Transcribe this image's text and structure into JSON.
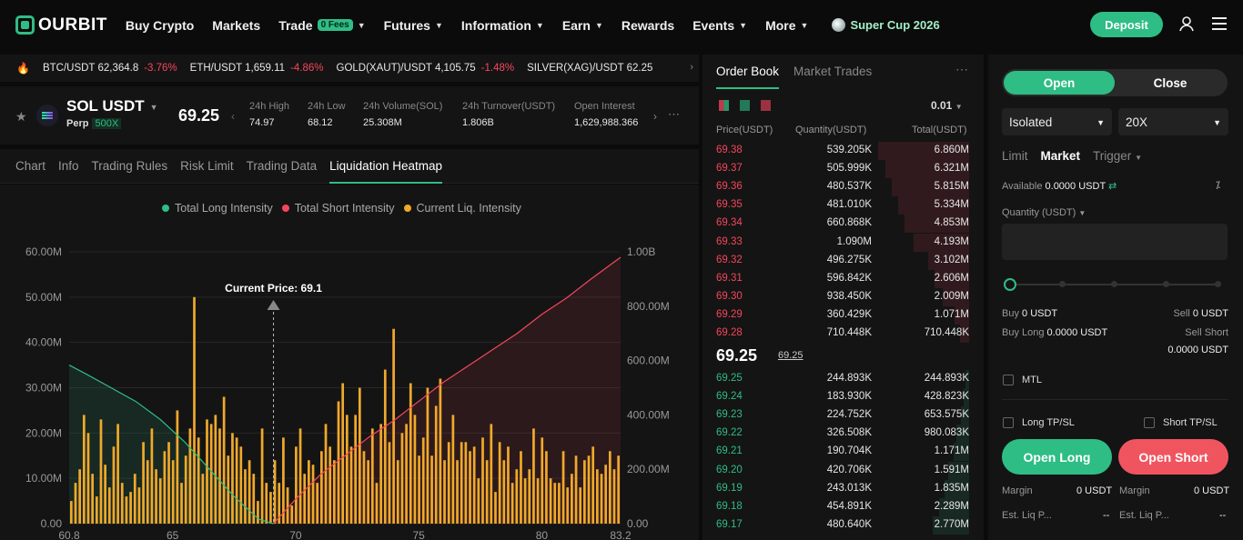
{
  "nav": {
    "logo": "OURBIT",
    "items": [
      {
        "label": "Buy Crypto",
        "chevron": false
      },
      {
        "label": "Markets",
        "chevron": false
      },
      {
        "label": "Trade",
        "chevron": true,
        "badge": "0 Fees"
      },
      {
        "label": "Futures",
        "chevron": true
      },
      {
        "label": "Information",
        "chevron": true
      },
      {
        "label": "Earn",
        "chevron": true
      },
      {
        "label": "Rewards",
        "chevron": false
      },
      {
        "label": "Events",
        "chevron": true
      },
      {
        "label": "More",
        "chevron": true
      }
    ],
    "promo": "Super Cup 2026",
    "deposit": "Deposit"
  },
  "ticker": [
    {
      "pair": "BTC/USDT",
      "price": "62,364.8",
      "change": "-3.76%"
    },
    {
      "pair": "ETH/USDT",
      "price": "1,659.11",
      "change": "-4.86%"
    },
    {
      "pair": "GOLD(XAUT)/USDT",
      "price": "4,105.75",
      "change": "-1.48%"
    },
    {
      "pair": "SILVER(XAG)/USDT",
      "price": "62.25",
      "change": ""
    }
  ],
  "symbol": {
    "name": "SOL USDT",
    "type": "Perp",
    "leverage": "500X",
    "last_price": "69.25",
    "stats": [
      {
        "label": "24h High",
        "value": "74.97"
      },
      {
        "label": "24h Low",
        "value": "68.12"
      },
      {
        "label": "24h Volume(SOL)",
        "value": "25.308M"
      },
      {
        "label": "24h Turnover(USDT)",
        "value": "1.806B"
      },
      {
        "label": "Open Interest",
        "value": "1,629,988.366"
      }
    ]
  },
  "tabs": [
    "Chart",
    "Info",
    "Trading Rules",
    "Risk Limit",
    "Trading Data",
    "Liquidation Heatmap"
  ],
  "active_tab": "Liquidation Heatmap",
  "chart_data": {
    "type": "bar",
    "title": "",
    "legend": [
      "Total Long Intensity",
      "Total Short Intensity",
      "Current Liq. Intensity"
    ],
    "legend_colors": [
      "#2ebd85",
      "#f6465d",
      "#f0a92b"
    ],
    "annotation": "Current Price: 69.1",
    "current_price": 69.1,
    "xlim": [
      60.8,
      83.2
    ],
    "x_ticks": [
      "60.8",
      "65",
      "70",
      "75",
      "80",
      "83.2"
    ],
    "y_left_ticks": [
      "0.00",
      "10.00M",
      "20.00M",
      "30.00M",
      "40.00M",
      "50.00M",
      "60.00M"
    ],
    "y_right_ticks": [
      "0.00",
      "200.00M",
      "400.00M",
      "600.00M",
      "800.00M",
      "1.00B"
    ],
    "ylim_left": [
      0,
      60
    ],
    "ylim_right": [
      0,
      1000
    ],
    "bar_unit": "M",
    "bars": [
      5,
      9,
      12,
      24,
      20,
      11,
      6,
      23,
      13,
      8,
      17,
      22,
      9,
      6,
      7,
      11,
      8,
      18,
      14,
      21,
      12,
      10,
      16,
      18,
      14,
      25,
      9,
      15,
      21,
      50,
      19,
      11,
      23,
      22,
      24,
      21,
      28,
      15,
      20,
      19,
      17,
      12,
      14,
      11,
      5,
      21,
      9,
      7,
      14,
      9,
      19,
      8,
      4,
      17,
      21,
      11,
      14,
      13,
      9,
      16,
      22,
      17,
      14,
      27,
      31,
      24,
      17,
      24,
      30,
      16,
      14,
      21,
      9,
      22,
      34,
      18,
      43,
      14,
      20,
      22,
      31,
      24,
      15,
      19,
      30,
      15,
      26,
      32,
      14,
      18,
      24,
      14,
      18,
      18,
      16,
      17,
      10,
      19,
      14,
      22,
      7,
      18,
      14,
      17,
      9,
      12,
      16,
      10,
      12,
      21,
      10,
      19,
      16,
      10,
      9,
      9,
      16,
      8,
      11,
      15,
      8,
      14,
      15,
      17,
      12,
      11,
      13,
      16,
      12,
      15
    ],
    "long_intensity": {
      "x": [
        60.8,
        61.5,
        62.5,
        63.5,
        64.5,
        65.5,
        66.5,
        67.5,
        68.5,
        69.1
      ],
      "values_M": [
        35,
        33,
        30,
        27,
        23,
        18,
        12,
        6,
        1,
        0
      ]
    },
    "short_intensity": {
      "x": [
        69.1,
        70,
        71,
        72,
        73,
        74,
        75,
        76,
        77,
        78,
        79,
        80,
        81,
        82,
        83.2
      ],
      "values_M": [
        0,
        90,
        180,
        250,
        320,
        380,
        450,
        520,
        580,
        640,
        700,
        770,
        830,
        900,
        980
      ]
    }
  },
  "orderbook": {
    "tabs": [
      "Order Book",
      "Market Trades"
    ],
    "precision": "0.01",
    "headers": [
      "Price(USDT)",
      "Quantity(USDT)",
      "Total(USDT)"
    ],
    "asks": [
      {
        "price": "69.38",
        "qty": "539.205K",
        "total": "6.860M",
        "depth": 1.0
      },
      {
        "price": "69.37",
        "qty": "505.999K",
        "total": "6.321M",
        "depth": 0.92
      },
      {
        "price": "69.36",
        "qty": "480.537K",
        "total": "5.815M",
        "depth": 0.85
      },
      {
        "price": "69.35",
        "qty": "481.010K",
        "total": "5.334M",
        "depth": 0.78
      },
      {
        "price": "69.34",
        "qty": "660.868K",
        "total": "4.853M",
        "depth": 0.71
      },
      {
        "price": "69.33",
        "qty": "1.090M",
        "total": "4.193M",
        "depth": 0.61
      },
      {
        "price": "69.32",
        "qty": "496.275K",
        "total": "3.102M",
        "depth": 0.45
      },
      {
        "price": "69.31",
        "qty": "596.842K",
        "total": "2.606M",
        "depth": 0.38
      },
      {
        "price": "69.30",
        "qty": "938.450K",
        "total": "2.009M",
        "depth": 0.29
      },
      {
        "price": "69.29",
        "qty": "360.429K",
        "total": "1.071M",
        "depth": 0.16
      },
      {
        "price": "69.28",
        "qty": "710.448K",
        "total": "710.448K",
        "depth": 0.1
      }
    ],
    "mid_price": "69.25",
    "mark_price": "69.25",
    "bids": [
      {
        "price": "69.25",
        "qty": "244.893K",
        "total": "244.893K",
        "depth": 0.04
      },
      {
        "price": "69.24",
        "qty": "183.930K",
        "total": "428.823K",
        "depth": 0.06
      },
      {
        "price": "69.23",
        "qty": "224.752K",
        "total": "653.575K",
        "depth": 0.09
      },
      {
        "price": "69.22",
        "qty": "326.508K",
        "total": "980.083K",
        "depth": 0.14
      },
      {
        "price": "69.21",
        "qty": "190.704K",
        "total": "1.171M",
        "depth": 0.17
      },
      {
        "price": "69.20",
        "qty": "420.706K",
        "total": "1.591M",
        "depth": 0.23
      },
      {
        "price": "69.19",
        "qty": "243.013K",
        "total": "1.835M",
        "depth": 0.27
      },
      {
        "price": "69.18",
        "qty": "454.891K",
        "total": "2.289M",
        "depth": 0.33
      },
      {
        "price": "69.17",
        "qty": "480.640K",
        "total": "2.770M",
        "depth": 0.4
      }
    ]
  },
  "panel": {
    "open": "Open",
    "close": "Close",
    "margin_mode": "Isolated",
    "leverage": "20X",
    "order_types": [
      "Limit",
      "Market",
      "Trigger"
    ],
    "active_type": "Market",
    "available_label": "Available",
    "available_value": "0.0000 USDT",
    "quantity_label": "Quantity (USDT)",
    "buy_label": "Buy",
    "buy_value": "0 USDT",
    "sell_label": "Sell",
    "sell_value": "0 USDT",
    "buy_long_label": "Buy Long",
    "buy_long_value": "0.0000 USDT",
    "sell_short_label": "Sell Short",
    "sell_short_value": "0.0000 USDT",
    "mtl": "MTL",
    "long_tpsl": "Long TP/SL",
    "short_tpsl": "Short TP/SL",
    "open_long": "Open Long",
    "open_short": "Open Short",
    "margin_label": "Margin",
    "margin_long": "0 USDT",
    "margin_short": "0 USDT",
    "est_liq_label": "Est. Liq P...",
    "est_liq_long": "--",
    "est_liq_short": "--"
  },
  "colors": {
    "accent": "#2ebd85",
    "negative": "#f6465d",
    "bar": "#f0a92b"
  }
}
